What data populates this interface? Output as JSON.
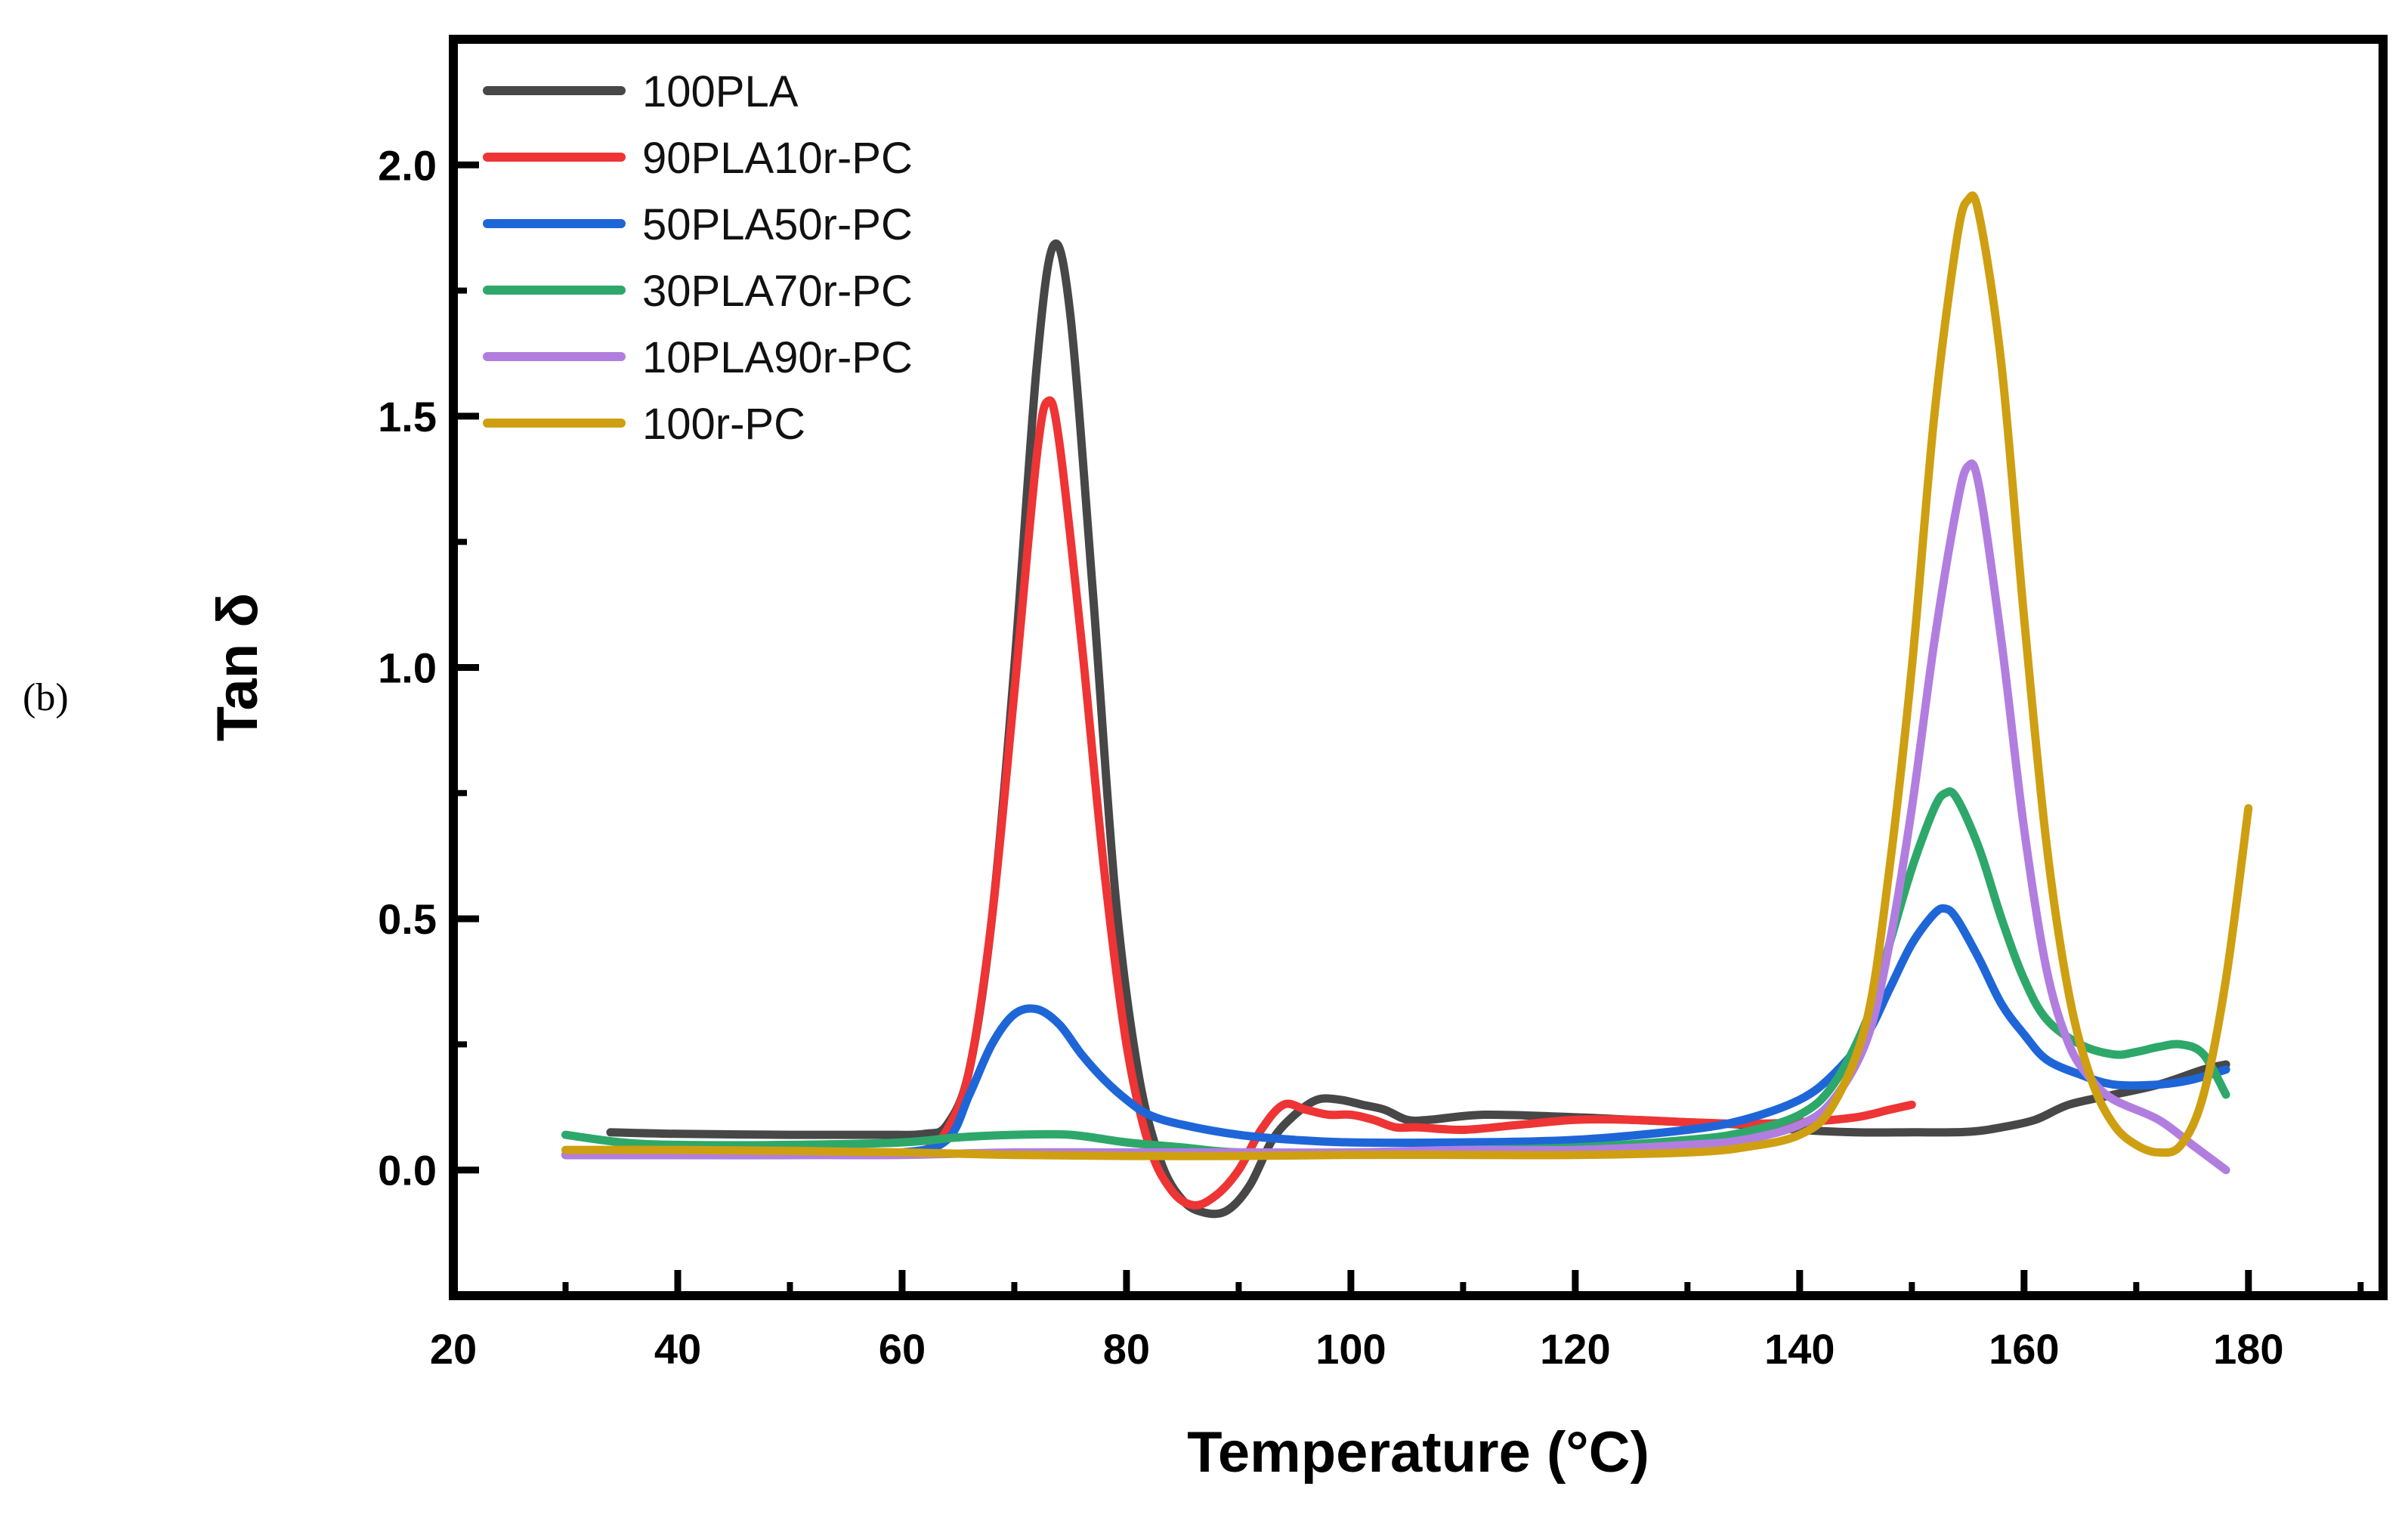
{
  "panel_label": "(b)",
  "chart_data": {
    "type": "line",
    "title": "",
    "xlabel": "Temperature (°C)",
    "ylabel": "Tan δ",
    "xlim": [
      20,
      192
    ],
    "ylim": [
      -0.25,
      2.25
    ],
    "xticks": [
      20,
      40,
      60,
      80,
      100,
      120,
      140,
      160,
      180
    ],
    "yticks": [
      0.0,
      0.5,
      1.0,
      1.5,
      2.0
    ],
    "xtick_labels": [
      "20",
      "40",
      "60",
      "80",
      "100",
      "120",
      "140",
      "160",
      "180"
    ],
    "ytick_labels": [
      "0.0",
      "0.5",
      "1.0",
      "1.5",
      "2.0"
    ],
    "grid": false,
    "legend_position": "top-left",
    "series": [
      {
        "name": "100PLA",
        "color": "#474747",
        "points": [
          [
            34,
            0.075
          ],
          [
            40,
            0.072
          ],
          [
            50,
            0.07
          ],
          [
            58,
            0.07
          ],
          [
            62,
            0.072
          ],
          [
            64,
            0.09
          ],
          [
            66,
            0.2
          ],
          [
            68,
            0.5
          ],
          [
            70,
            1.0
          ],
          [
            72,
            1.6
          ],
          [
            73.5,
            1.84
          ],
          [
            75,
            1.7
          ],
          [
            77,
            1.15
          ],
          [
            79,
            0.55
          ],
          [
            81,
            0.2
          ],
          [
            83,
            0.02
          ],
          [
            85,
            -0.06
          ],
          [
            87,
            -0.085
          ],
          [
            89,
            -0.08
          ],
          [
            91,
            -0.03
          ],
          [
            93,
            0.06
          ],
          [
            95,
            0.11
          ],
          [
            97,
            0.14
          ],
          [
            99,
            0.14
          ],
          [
            101,
            0.13
          ],
          [
            103,
            0.12
          ],
          [
            105,
            0.1
          ],
          [
            107,
            0.1
          ],
          [
            112,
            0.11
          ],
          [
            120,
            0.105
          ],
          [
            125,
            0.1
          ],
          [
            130,
            0.095
          ],
          [
            135,
            0.09
          ],
          [
            140,
            0.08
          ],
          [
            145,
            0.075
          ],
          [
            150,
            0.075
          ],
          [
            155,
            0.076
          ],
          [
            158,
            0.085
          ],
          [
            161,
            0.1
          ],
          [
            164,
            0.13
          ],
          [
            168,
            0.15
          ],
          [
            172,
            0.17
          ],
          [
            176,
            0.2
          ],
          [
            178,
            0.21
          ]
        ]
      },
      {
        "name": "90PLA10r-PC",
        "color": "#ee3434",
        "points": [
          [
            30,
            0.03
          ],
          [
            40,
            0.03
          ],
          [
            50,
            0.03
          ],
          [
            58,
            0.032
          ],
          [
            62,
            0.04
          ],
          [
            64,
            0.08
          ],
          [
            66,
            0.2
          ],
          [
            68,
            0.5
          ],
          [
            70,
            0.95
          ],
          [
            72,
            1.42
          ],
          [
            73,
            1.53
          ],
          [
            74,
            1.45
          ],
          [
            76,
            1.05
          ],
          [
            78,
            0.6
          ],
          [
            80,
            0.25
          ],
          [
            82,
            0.05
          ],
          [
            84,
            -0.04
          ],
          [
            86,
            -0.07
          ],
          [
            88,
            -0.05
          ],
          [
            90,
            0.0
          ],
          [
            92,
            0.08
          ],
          [
            94,
            0.13
          ],
          [
            96,
            0.12
          ],
          [
            98,
            0.11
          ],
          [
            100,
            0.11
          ],
          [
            102,
            0.1
          ],
          [
            104,
            0.085
          ],
          [
            106,
            0.085
          ],
          [
            110,
            0.08
          ],
          [
            115,
            0.09
          ],
          [
            120,
            0.1
          ],
          [
            125,
            0.1
          ],
          [
            130,
            0.095
          ],
          [
            135,
            0.092
          ],
          [
            140,
            0.095
          ],
          [
            145,
            0.105
          ],
          [
            148,
            0.12
          ],
          [
            150,
            0.13
          ]
        ]
      },
      {
        "name": "50PLA50r-PC",
        "color": "#1e66d8",
        "points": [
          [
            30,
            0.03
          ],
          [
            40,
            0.03
          ],
          [
            50,
            0.03
          ],
          [
            60,
            0.035
          ],
          [
            64,
            0.06
          ],
          [
            66,
            0.15
          ],
          [
            68,
            0.25
          ],
          [
            70,
            0.31
          ],
          [
            72,
            0.32
          ],
          [
            74,
            0.29
          ],
          [
            76,
            0.23
          ],
          [
            78,
            0.18
          ],
          [
            80,
            0.14
          ],
          [
            82,
            0.11
          ],
          [
            85,
            0.09
          ],
          [
            90,
            0.07
          ],
          [
            95,
            0.06
          ],
          [
            100,
            0.055
          ],
          [
            110,
            0.055
          ],
          [
            120,
            0.06
          ],
          [
            130,
            0.08
          ],
          [
            135,
            0.1
          ],
          [
            140,
            0.14
          ],
          [
            143,
            0.19
          ],
          [
            146,
            0.27
          ],
          [
            148,
            0.36
          ],
          [
            150,
            0.45
          ],
          [
            152,
            0.51
          ],
          [
            153,
            0.52
          ],
          [
            154,
            0.5
          ],
          [
            156,
            0.42
          ],
          [
            158,
            0.33
          ],
          [
            160,
            0.27
          ],
          [
            162,
            0.22
          ],
          [
            165,
            0.19
          ],
          [
            168,
            0.17
          ],
          [
            172,
            0.17
          ],
          [
            175,
            0.18
          ],
          [
            178,
            0.2
          ]
        ]
      },
      {
        "name": "30PLA70r-PC",
        "color": "#2ea86a",
        "points": [
          [
            30,
            0.07
          ],
          [
            35,
            0.055
          ],
          [
            40,
            0.05
          ],
          [
            50,
            0.05
          ],
          [
            60,
            0.055
          ],
          [
            65,
            0.065
          ],
          [
            70,
            0.07
          ],
          [
            75,
            0.07
          ],
          [
            80,
            0.055
          ],
          [
            85,
            0.045
          ],
          [
            90,
            0.035
          ],
          [
            100,
            0.035
          ],
          [
            110,
            0.04
          ],
          [
            120,
            0.045
          ],
          [
            130,
            0.06
          ],
          [
            135,
            0.075
          ],
          [
            140,
            0.11
          ],
          [
            143,
            0.17
          ],
          [
            146,
            0.3
          ],
          [
            148,
            0.45
          ],
          [
            150,
            0.6
          ],
          [
            152,
            0.72
          ],
          [
            153,
            0.75
          ],
          [
            154,
            0.74
          ],
          [
            156,
            0.64
          ],
          [
            158,
            0.5
          ],
          [
            160,
            0.38
          ],
          [
            162,
            0.3
          ],
          [
            165,
            0.25
          ],
          [
            168,
            0.23
          ],
          [
            170,
            0.235
          ],
          [
            172,
            0.245
          ],
          [
            174,
            0.25
          ],
          [
            176,
            0.23
          ],
          [
            178,
            0.15
          ]
        ]
      },
      {
        "name": "10PLA90r-PC",
        "color": "#b17ee0",
        "points": [
          [
            30,
            0.03
          ],
          [
            40,
            0.03
          ],
          [
            50,
            0.03
          ],
          [
            60,
            0.03
          ],
          [
            70,
            0.035
          ],
          [
            80,
            0.035
          ],
          [
            90,
            0.035
          ],
          [
            100,
            0.035
          ],
          [
            110,
            0.04
          ],
          [
            120,
            0.04
          ],
          [
            130,
            0.05
          ],
          [
            135,
            0.06
          ],
          [
            140,
            0.09
          ],
          [
            143,
            0.14
          ],
          [
            146,
            0.26
          ],
          [
            148,
            0.45
          ],
          [
            150,
            0.72
          ],
          [
            152,
            1.05
          ],
          [
            154,
            1.32
          ],
          [
            155,
            1.4
          ],
          [
            156,
            1.36
          ],
          [
            158,
            1.05
          ],
          [
            160,
            0.68
          ],
          [
            162,
            0.4
          ],
          [
            164,
            0.25
          ],
          [
            166,
            0.18
          ],
          [
            168,
            0.14
          ],
          [
            172,
            0.1
          ],
          [
            175,
            0.05
          ],
          [
            178,
            0.0
          ]
        ]
      },
      {
        "name": "100r-PC",
        "color": "#cf9f12",
        "points": [
          [
            30,
            0.04
          ],
          [
            40,
            0.04
          ],
          [
            50,
            0.038
          ],
          [
            60,
            0.035
          ],
          [
            70,
            0.03
          ],
          [
            80,
            0.028
          ],
          [
            90,
            0.028
          ],
          [
            100,
            0.03
          ],
          [
            110,
            0.03
          ],
          [
            120,
            0.03
          ],
          [
            130,
            0.035
          ],
          [
            135,
            0.045
          ],
          [
            140,
            0.07
          ],
          [
            143,
            0.13
          ],
          [
            146,
            0.3
          ],
          [
            148,
            0.6
          ],
          [
            150,
            1.0
          ],
          [
            152,
            1.5
          ],
          [
            154,
            1.85
          ],
          [
            155,
            1.93
          ],
          [
            156,
            1.9
          ],
          [
            158,
            1.6
          ],
          [
            160,
            1.1
          ],
          [
            162,
            0.65
          ],
          [
            164,
            0.35
          ],
          [
            166,
            0.18
          ],
          [
            168,
            0.09
          ],
          [
            170,
            0.05
          ],
          [
            172,
            0.035
          ],
          [
            174,
            0.05
          ],
          [
            176,
            0.15
          ],
          [
            178,
            0.38
          ],
          [
            180,
            0.72
          ]
        ]
      }
    ]
  }
}
